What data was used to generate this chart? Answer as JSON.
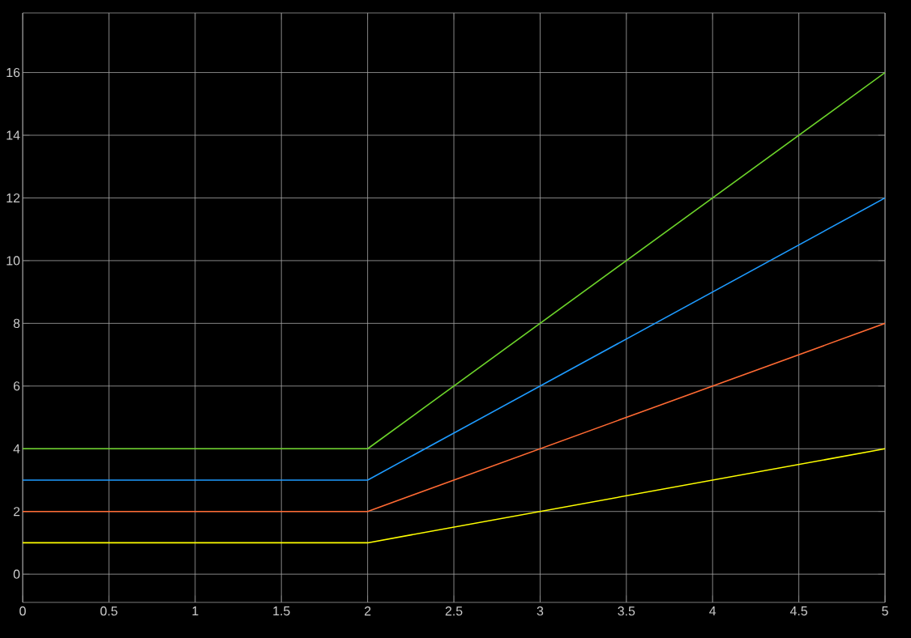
{
  "chart_data": {
    "type": "line",
    "x": [
      0,
      2,
      5
    ],
    "series": [
      {
        "color": "#ffff00",
        "values": [
          1,
          1,
          4
        ]
      },
      {
        "color": "#ff6a33",
        "values": [
          2,
          2,
          8
        ]
      },
      {
        "color": "#1e9bff",
        "values": [
          3,
          3,
          12
        ]
      },
      {
        "color": "#6cd42a",
        "values": [
          4,
          4,
          16
        ]
      }
    ],
    "xlim": [
      0,
      5
    ],
    "ylim": [
      -0.9,
      17.9
    ],
    "xticks": [
      0,
      0.5,
      1,
      1.5,
      2,
      2.5,
      3,
      3.5,
      4,
      4.5,
      5
    ],
    "yticks": [
      0,
      2,
      4,
      6,
      8,
      10,
      12,
      14,
      16
    ],
    "grid": true
  }
}
